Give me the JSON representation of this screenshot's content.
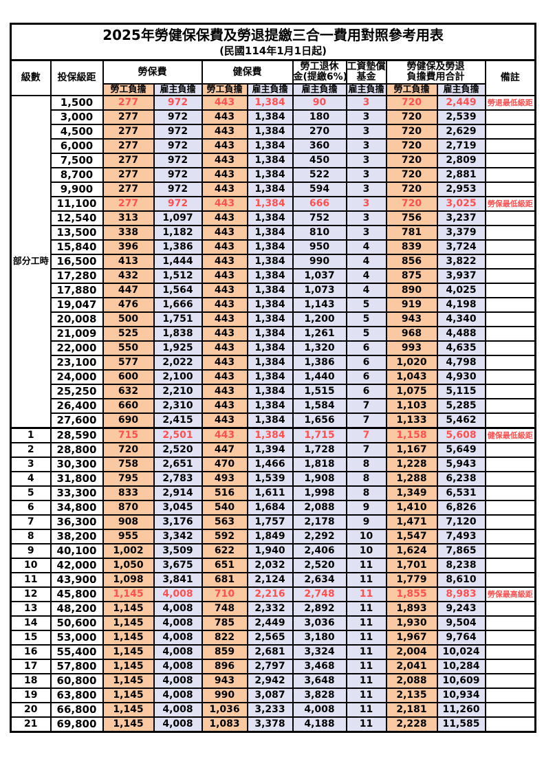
{
  "title": "2025年勞健保保費及勞退提繳三合一費用對照參考用表",
  "subtitle": "(民國114年1月1日起)",
  "colors": {
    "employee_bg": "#FAC9A1",
    "employer_bg": "#E0E2F4",
    "highlight_red": "#FF5050",
    "border": "#000000"
  },
  "header": {
    "grade": "級數",
    "bracket": "投保級距",
    "labor_fee": "勞保費",
    "health_fee": "健保費",
    "pension_line1": "勞工退休",
    "pension_line2": "金(提繳6%)",
    "wage_fund_line1": "工資墊償",
    "wage_fund_line2": "基金",
    "total_line1": "勞健保及勞退",
    "total_line2": "負擔費用合計",
    "remark": "備註",
    "employee": "勞工負擔",
    "employer": "雇主負擔"
  },
  "part_time_label": "部分工時",
  "value_columns": [
    {
      "name": "labor-employee",
      "type": "employee"
    },
    {
      "name": "labor-employer",
      "type": "employer"
    },
    {
      "name": "health-employee",
      "type": "employee"
    },
    {
      "name": "health-employer",
      "type": "employer"
    },
    {
      "name": "pension-employer",
      "type": "employer"
    },
    {
      "name": "wage-fund-employer",
      "type": "employer"
    },
    {
      "name": "total-employee",
      "type": "employee"
    },
    {
      "name": "total-employer",
      "type": "employer"
    }
  ],
  "rows": [
    {
      "grade": "",
      "bracket": "1,500",
      "values": [
        "277",
        "972",
        "443",
        "1,384",
        "90",
        "3",
        "720",
        "2,449"
      ],
      "note": "勞退最低級距",
      "highlight": true
    },
    {
      "grade": "",
      "bracket": "3,000",
      "values": [
        "277",
        "972",
        "443",
        "1,384",
        "180",
        "3",
        "720",
        "2,539"
      ],
      "note": "",
      "highlight": false
    },
    {
      "grade": "",
      "bracket": "4,500",
      "values": [
        "277",
        "972",
        "443",
        "1,384",
        "270",
        "3",
        "720",
        "2,629"
      ],
      "note": "",
      "highlight": false
    },
    {
      "grade": "",
      "bracket": "6,000",
      "values": [
        "277",
        "972",
        "443",
        "1,384",
        "360",
        "3",
        "720",
        "2,719"
      ],
      "note": "",
      "highlight": false
    },
    {
      "grade": "",
      "bracket": "7,500",
      "values": [
        "277",
        "972",
        "443",
        "1,384",
        "450",
        "3",
        "720",
        "2,809"
      ],
      "note": "",
      "highlight": false
    },
    {
      "grade": "",
      "bracket": "8,700",
      "values": [
        "277",
        "972",
        "443",
        "1,384",
        "522",
        "3",
        "720",
        "2,881"
      ],
      "note": "",
      "highlight": false
    },
    {
      "grade": "",
      "bracket": "9,900",
      "values": [
        "277",
        "972",
        "443",
        "1,384",
        "594",
        "3",
        "720",
        "2,953"
      ],
      "note": "",
      "highlight": false
    },
    {
      "grade": "",
      "bracket": "11,100",
      "values": [
        "277",
        "972",
        "443",
        "1,384",
        "666",
        "3",
        "720",
        "3,025"
      ],
      "note": "勞保最低級距",
      "highlight": true
    },
    {
      "grade": "",
      "bracket": "12,540",
      "values": [
        "313",
        "1,097",
        "443",
        "1,384",
        "752",
        "3",
        "756",
        "3,237"
      ],
      "note": "",
      "highlight": false
    },
    {
      "grade": "",
      "bracket": "13,500",
      "values": [
        "338",
        "1,182",
        "443",
        "1,384",
        "810",
        "3",
        "781",
        "3,379"
      ],
      "note": "",
      "highlight": false
    },
    {
      "grade": "",
      "bracket": "15,840",
      "values": [
        "396",
        "1,386",
        "443",
        "1,384",
        "950",
        "4",
        "839",
        "3,724"
      ],
      "note": "",
      "highlight": false
    },
    {
      "grade": "",
      "bracket": "16,500",
      "values": [
        "413",
        "1,444",
        "443",
        "1,384",
        "990",
        "4",
        "856",
        "3,822"
      ],
      "note": "",
      "highlight": false
    },
    {
      "grade": "",
      "bracket": "17,280",
      "values": [
        "432",
        "1,512",
        "443",
        "1,384",
        "1,037",
        "4",
        "875",
        "3,937"
      ],
      "note": "",
      "highlight": false
    },
    {
      "grade": "",
      "bracket": "17,880",
      "values": [
        "447",
        "1,564",
        "443",
        "1,384",
        "1,073",
        "4",
        "890",
        "4,025"
      ],
      "note": "",
      "highlight": false
    },
    {
      "grade": "",
      "bracket": "19,047",
      "values": [
        "476",
        "1,666",
        "443",
        "1,384",
        "1,143",
        "5",
        "919",
        "4,198"
      ],
      "note": "",
      "highlight": false
    },
    {
      "grade": "",
      "bracket": "20,008",
      "values": [
        "500",
        "1,751",
        "443",
        "1,384",
        "1,200",
        "5",
        "943",
        "4,340"
      ],
      "note": "",
      "highlight": false
    },
    {
      "grade": "",
      "bracket": "21,009",
      "values": [
        "525",
        "1,838",
        "443",
        "1,384",
        "1,261",
        "5",
        "968",
        "4,488"
      ],
      "note": "",
      "highlight": false
    },
    {
      "grade": "",
      "bracket": "22,000",
      "values": [
        "550",
        "1,925",
        "443",
        "1,384",
        "1,320",
        "6",
        "993",
        "4,635"
      ],
      "note": "",
      "highlight": false
    },
    {
      "grade": "",
      "bracket": "23,100",
      "values": [
        "577",
        "2,022",
        "443",
        "1,384",
        "1,386",
        "6",
        "1,020",
        "4,798"
      ],
      "note": "",
      "highlight": false
    },
    {
      "grade": "",
      "bracket": "24,000",
      "values": [
        "600",
        "2,100",
        "443",
        "1,384",
        "1,440",
        "6",
        "1,043",
        "4,930"
      ],
      "note": "",
      "highlight": false
    },
    {
      "grade": "",
      "bracket": "25,250",
      "values": [
        "632",
        "2,210",
        "443",
        "1,384",
        "1,515",
        "6",
        "1,075",
        "5,115"
      ],
      "note": "",
      "highlight": false
    },
    {
      "grade": "",
      "bracket": "26,400",
      "values": [
        "660",
        "2,310",
        "443",
        "1,384",
        "1,584",
        "7",
        "1,103",
        "5,285"
      ],
      "note": "",
      "highlight": false
    },
    {
      "grade": "",
      "bracket": "27,600",
      "values": [
        "690",
        "2,415",
        "443",
        "1,384",
        "1,656",
        "7",
        "1,133",
        "5,462"
      ],
      "note": "",
      "highlight": false
    },
    {
      "grade": "1",
      "bracket": "28,590",
      "values": [
        "715",
        "2,501",
        "443",
        "1,384",
        "1,715",
        "7",
        "1,158",
        "5,608"
      ],
      "note": "健保最低級距",
      "highlight": true
    },
    {
      "grade": "2",
      "bracket": "28,800",
      "values": [
        "720",
        "2,520",
        "447",
        "1,394",
        "1,728",
        "7",
        "1,167",
        "5,649"
      ],
      "note": "",
      "highlight": false
    },
    {
      "grade": "3",
      "bracket": "30,300",
      "values": [
        "758",
        "2,651",
        "470",
        "1,466",
        "1,818",
        "8",
        "1,228",
        "5,943"
      ],
      "note": "",
      "highlight": false
    },
    {
      "grade": "4",
      "bracket": "31,800",
      "values": [
        "795",
        "2,783",
        "493",
        "1,539",
        "1,908",
        "8",
        "1,288",
        "6,238"
      ],
      "note": "",
      "highlight": false
    },
    {
      "grade": "5",
      "bracket": "33,300",
      "values": [
        "833",
        "2,914",
        "516",
        "1,611",
        "1,998",
        "8",
        "1,349",
        "6,531"
      ],
      "note": "",
      "highlight": false
    },
    {
      "grade": "6",
      "bracket": "34,800",
      "values": [
        "870",
        "3,045",
        "540",
        "1,684",
        "2,088",
        "9",
        "1,410",
        "6,826"
      ],
      "note": "",
      "highlight": false
    },
    {
      "grade": "7",
      "bracket": "36,300",
      "values": [
        "908",
        "3,176",
        "563",
        "1,757",
        "2,178",
        "9",
        "1,471",
        "7,120"
      ],
      "note": "",
      "highlight": false
    },
    {
      "grade": "8",
      "bracket": "38,200",
      "values": [
        "955",
        "3,342",
        "592",
        "1,849",
        "2,292",
        "10",
        "1,547",
        "7,493"
      ],
      "note": "",
      "highlight": false
    },
    {
      "grade": "9",
      "bracket": "40,100",
      "values": [
        "1,002",
        "3,509",
        "622",
        "1,940",
        "2,406",
        "10",
        "1,624",
        "7,865"
      ],
      "note": "",
      "highlight": false
    },
    {
      "grade": "10",
      "bracket": "42,000",
      "values": [
        "1,050",
        "3,675",
        "651",
        "2,032",
        "2,520",
        "11",
        "1,701",
        "8,238"
      ],
      "note": "",
      "highlight": false
    },
    {
      "grade": "11",
      "bracket": "43,900",
      "values": [
        "1,098",
        "3,841",
        "681",
        "2,124",
        "2,634",
        "11",
        "1,779",
        "8,610"
      ],
      "note": "",
      "highlight": false
    },
    {
      "grade": "12",
      "bracket": "45,800",
      "values": [
        "1,145",
        "4,008",
        "710",
        "2,216",
        "2,748",
        "11",
        "1,855",
        "8,983"
      ],
      "note": "勞保最高級距",
      "highlight": true
    },
    {
      "grade": "13",
      "bracket": "48,200",
      "values": [
        "1,145",
        "4,008",
        "748",
        "2,332",
        "2,892",
        "11",
        "1,893",
        "9,243"
      ],
      "note": "",
      "highlight": false
    },
    {
      "grade": "14",
      "bracket": "50,600",
      "values": [
        "1,145",
        "4,008",
        "785",
        "2,449",
        "3,036",
        "11",
        "1,930",
        "9,504"
      ],
      "note": "",
      "highlight": false
    },
    {
      "grade": "15",
      "bracket": "53,000",
      "values": [
        "1,145",
        "4,008",
        "822",
        "2,565",
        "3,180",
        "11",
        "1,967",
        "9,764"
      ],
      "note": "",
      "highlight": false
    },
    {
      "grade": "16",
      "bracket": "55,400",
      "values": [
        "1,145",
        "4,008",
        "859",
        "2,681",
        "3,324",
        "11",
        "2,004",
        "10,024"
      ],
      "note": "",
      "highlight": false
    },
    {
      "grade": "17",
      "bracket": "57,800",
      "values": [
        "1,145",
        "4,008",
        "896",
        "2,797",
        "3,468",
        "11",
        "2,041",
        "10,284"
      ],
      "note": "",
      "highlight": false
    },
    {
      "grade": "18",
      "bracket": "60,800",
      "values": [
        "1,145",
        "4,008",
        "943",
        "2,942",
        "3,648",
        "11",
        "2,088",
        "10,609"
      ],
      "note": "",
      "highlight": false
    },
    {
      "grade": "19",
      "bracket": "63,800",
      "values": [
        "1,145",
        "4,008",
        "990",
        "3,087",
        "3,828",
        "11",
        "2,135",
        "10,934"
      ],
      "note": "",
      "highlight": false
    },
    {
      "grade": "20",
      "bracket": "66,800",
      "values": [
        "1,145",
        "4,008",
        "1,036",
        "3,233",
        "4,008",
        "11",
        "2,181",
        "11,260"
      ],
      "note": "",
      "highlight": false
    },
    {
      "grade": "21",
      "bracket": "69,800",
      "values": [
        "1,145",
        "4,008",
        "1,083",
        "3,378",
        "4,188",
        "11",
        "2,228",
        "11,585"
      ],
      "note": "",
      "highlight": false
    }
  ]
}
